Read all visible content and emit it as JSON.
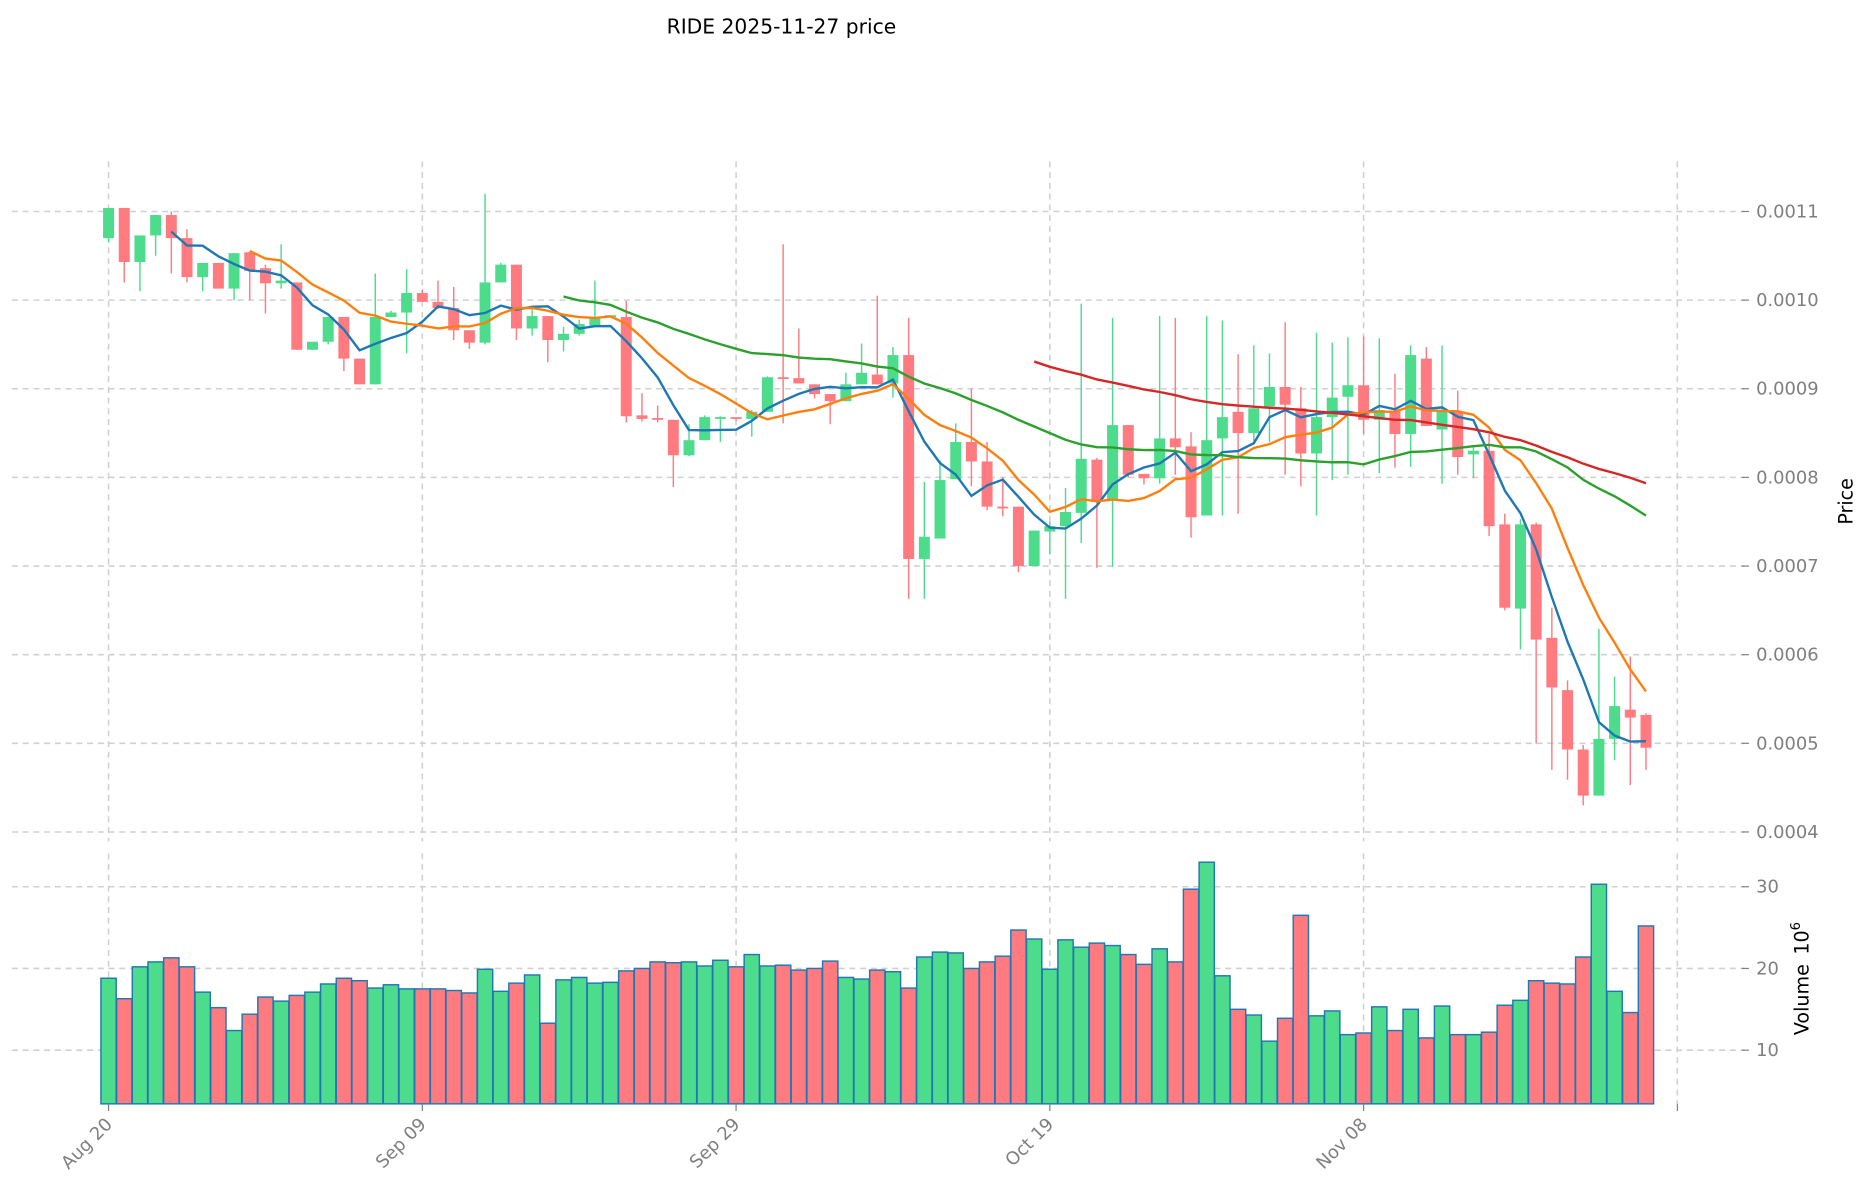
{
  "chart_data": {
    "type": "candlestick",
    "title": "RIDE  2025-11-27  price",
    "symbol": "RIDE",
    "start_date": "2025-08-20",
    "frequency": "daily",
    "ohlc_unit": 0.0001,
    "ohlc_fields": [
      "open",
      "high",
      "low",
      "close"
    ],
    "ohlc": [
      [
        10.7,
        11.04,
        10.65,
        11.04
      ],
      [
        11.04,
        11.04,
        10.2,
        10.43
      ],
      [
        10.43,
        10.73,
        10.1,
        10.73
      ],
      [
        10.73,
        10.96,
        10.5,
        10.96
      ],
      [
        10.96,
        11.0,
        10.3,
        10.7
      ],
      [
        10.7,
        10.8,
        10.2,
        10.26
      ],
      [
        10.26,
        10.42,
        10.1,
        10.42
      ],
      [
        10.42,
        10.42,
        10.13,
        10.13
      ],
      [
        10.13,
        10.53,
        10.0,
        10.53
      ],
      [
        10.54,
        10.54,
        10.0,
        10.33
      ],
      [
        10.36,
        10.4,
        9.85,
        10.19
      ],
      [
        10.19,
        10.63,
        10.13,
        10.22
      ],
      [
        10.2,
        10.2,
        9.44,
        9.44
      ],
      [
        9.44,
        9.53,
        9.44,
        9.53
      ],
      [
        9.53,
        9.81,
        9.5,
        9.81
      ],
      [
        9.81,
        9.81,
        9.2,
        9.34
      ],
      [
        9.34,
        9.34,
        9.05,
        9.05
      ],
      [
        9.05,
        10.3,
        9.05,
        9.81
      ],
      [
        9.81,
        9.88,
        9.81,
        9.86
      ],
      [
        9.86,
        10.35,
        9.4,
        10.08
      ],
      [
        10.08,
        10.12,
        9.98,
        9.98
      ],
      [
        9.98,
        10.22,
        9.9,
        9.91
      ],
      [
        9.91,
        10.15,
        9.55,
        9.66
      ],
      [
        9.66,
        9.66,
        9.45,
        9.52
      ],
      [
        9.52,
        11.2,
        9.5,
        10.2
      ],
      [
        10.2,
        10.42,
        10.2,
        10.4
      ],
      [
        10.4,
        10.4,
        9.55,
        9.68
      ],
      [
        9.68,
        9.9,
        9.6,
        9.82
      ],
      [
        9.82,
        9.82,
        9.3,
        9.55
      ],
      [
        9.55,
        9.7,
        9.42,
        9.62
      ],
      [
        9.62,
        9.78,
        9.6,
        9.73
      ],
      [
        9.71,
        10.22,
        9.71,
        9.81
      ],
      [
        9.81,
        9.83,
        9.8,
        9.83
      ],
      [
        9.81,
        9.99,
        8.62,
        8.69
      ],
      [
        8.7,
        8.95,
        8.63,
        8.66
      ],
      [
        8.67,
        8.81,
        8.62,
        8.65
      ],
      [
        8.65,
        8.65,
        7.89,
        8.25
      ],
      [
        8.25,
        8.6,
        8.24,
        8.42
      ],
      [
        8.42,
        8.7,
        8.42,
        8.68
      ],
      [
        8.67,
        8.69,
        8.4,
        8.68
      ],
      [
        8.68,
        8.68,
        8.64,
        8.66
      ],
      [
        8.66,
        8.76,
        8.46,
        8.74
      ],
      [
        8.74,
        9.14,
        8.74,
        9.13
      ],
      [
        9.13,
        10.63,
        8.61,
        9.12
      ],
      [
        9.12,
        9.68,
        9.06,
        9.06
      ],
      [
        9.05,
        9.05,
        8.89,
        8.94
      ],
      [
        8.94,
        8.94,
        8.6,
        8.86
      ],
      [
        8.86,
        9.18,
        8.86,
        9.05
      ],
      [
        9.05,
        9.51,
        9.05,
        9.18
      ],
      [
        9.16,
        10.05,
        9.05,
        9.05
      ],
      [
        9.06,
        9.47,
        8.9,
        9.38
      ],
      [
        9.38,
        9.8,
        6.63,
        7.08
      ],
      [
        7.08,
        7.95,
        6.63,
        7.33
      ],
      [
        7.31,
        8.19,
        7.31,
        7.97
      ],
      [
        7.98,
        8.61,
        7.98,
        8.4
      ],
      [
        8.4,
        9.0,
        7.9,
        8.18
      ],
      [
        8.18,
        8.4,
        7.63,
        7.67
      ],
      [
        7.67,
        8.0,
        7.56,
        7.65
      ],
      [
        7.67,
        7.67,
        6.93,
        7.0
      ],
      [
        7.0,
        7.4,
        7.0,
        7.4
      ],
      [
        7.39,
        7.5,
        7.13,
        7.45
      ],
      [
        7.45,
        7.88,
        6.63,
        7.61
      ],
      [
        7.6,
        9.96,
        7.26,
        8.21
      ],
      [
        8.2,
        8.22,
        6.98,
        7.74
      ],
      [
        7.74,
        9.8,
        6.99,
        8.59
      ],
      [
        8.59,
        8.59,
        8.0,
        8.03
      ],
      [
        8.04,
        8.04,
        7.92,
        7.99
      ],
      [
        7.99,
        9.82,
        7.93,
        8.44
      ],
      [
        8.44,
        9.8,
        8.03,
        8.34
      ],
      [
        8.35,
        8.51,
        7.32,
        7.55
      ],
      [
        7.57,
        9.82,
        7.57,
        8.42
      ],
      [
        8.44,
        9.77,
        7.57,
        8.68
      ],
      [
        8.74,
        9.39,
        7.59,
        8.5
      ],
      [
        8.5,
        9.49,
        8.41,
        8.78
      ],
      [
        8.8,
        9.4,
        8.4,
        9.02
      ],
      [
        9.02,
        9.75,
        8.03,
        8.82
      ],
      [
        8.78,
        9.02,
        7.9,
        8.27
      ],
      [
        8.27,
        9.63,
        7.57,
        8.68
      ],
      [
        8.68,
        9.52,
        7.97,
        8.9
      ],
      [
        8.91,
        9.58,
        8.03,
        9.04
      ],
      [
        9.04,
        9.59,
        8.49,
        8.65
      ],
      [
        8.65,
        9.57,
        8.05,
        8.76
      ],
      [
        8.75,
        9.17,
        8.11,
        8.49
      ],
      [
        8.49,
        9.49,
        8.12,
        9.38
      ],
      [
        9.34,
        9.47,
        8.58,
        8.58
      ],
      [
        8.54,
        9.49,
        7.93,
        8.74
      ],
      [
        8.74,
        8.98,
        8.03,
        8.23
      ],
      [
        8.26,
        8.34,
        7.99,
        8.3
      ],
      [
        8.3,
        8.49,
        7.34,
        7.45
      ],
      [
        7.47,
        7.59,
        6.5,
        6.53
      ],
      [
        6.52,
        7.53,
        6.06,
        7.47
      ],
      [
        7.47,
        7.49,
        5.0,
        6.17
      ],
      [
        6.19,
        6.53,
        4.7,
        5.63
      ],
      [
        5.6,
        5.71,
        4.59,
        4.93
      ],
      [
        4.93,
        4.98,
        4.3,
        4.41
      ],
      [
        4.41,
        6.29,
        4.41,
        5.05
      ],
      [
        5.05,
        5.75,
        4.81,
        5.42
      ],
      [
        5.38,
        5.98,
        4.53,
        5.29
      ],
      [
        5.32,
        5.34,
        4.7,
        4.95
      ]
    ],
    "volume_millions": [
      18.8,
      16.3,
      20.2,
      20.8,
      21.3,
      20.2,
      17.1,
      15.2,
      12.4,
      14.4,
      16.5,
      16.0,
      16.7,
      17.1,
      18.1,
      18.8,
      18.5,
      17.6,
      18.0,
      17.5,
      17.5,
      17.5,
      17.3,
      17.0,
      19.9,
      17.2,
      18.2,
      19.2,
      13.3,
      18.6,
      18.9,
      18.2,
      18.3,
      19.7,
      20.0,
      20.8,
      20.7,
      20.8,
      20.3,
      21.0,
      20.2,
      21.7,
      20.3,
      20.4,
      19.8,
      20.0,
      20.9,
      18.9,
      18.7,
      19.8,
      19.6,
      17.6,
      21.4,
      22.0,
      21.9,
      20.0,
      20.8,
      21.5,
      24.7,
      23.6,
      19.9,
      23.5,
      22.6,
      23.1,
      22.8,
      21.7,
      20.5,
      22.4,
      20.8,
      29.7,
      33.0,
      19.1,
      15.0,
      14.3,
      11.1,
      13.9,
      26.5,
      14.2,
      14.8,
      11.9,
      12.1,
      15.3,
      12.4,
      15.0,
      11.5,
      15.4,
      11.9,
      11.9,
      12.2,
      15.5,
      16.1,
      18.5,
      18.2,
      18.1,
      21.4,
      30.3,
      17.2,
      14.6,
      25.2
    ],
    "moving_averages": [
      {
        "window": 5,
        "color": "#1f77b4"
      },
      {
        "window": 10,
        "color": "#ff7f0e"
      },
      {
        "window": 30,
        "color": "#2ca02c"
      },
      {
        "window": 60,
        "color": "#d62728"
      }
    ],
    "price_axis": {
      "label": "Price",
      "ylim": [
        0.000375,
        0.001157
      ],
      "ticks": [
        "0.0004",
        "0.0005",
        "0.0006",
        "0.0007",
        "0.0008",
        "0.0009",
        "0.0010",
        "0.0011"
      ],
      "position": "right"
    },
    "volume_axis": {
      "label": "Volume",
      "exponent_label": "10",
      "exponent": "6",
      "ylim": [
        3.4,
        35
      ],
      "ticks": [
        "10",
        "20",
        "30"
      ],
      "position": "right"
    },
    "x_axis": {
      "ticks": [
        {
          "label": "Aug 20",
          "index": 0
        },
        {
          "label": "Sep 09",
          "index": 20
        },
        {
          "label": "Sep 29",
          "index": 40
        },
        {
          "label": "Oct 19",
          "index": 60
        },
        {
          "label": "Nov 08",
          "index": 80
        },
        {
          "label": "",
          "index": 100
        }
      ]
    },
    "colors": {
      "up": "#4cdc8b",
      "down": "#ff7b80",
      "volume_edge": "#1f77b4",
      "grid": "#d0d0d0"
    },
    "grid": true
  }
}
